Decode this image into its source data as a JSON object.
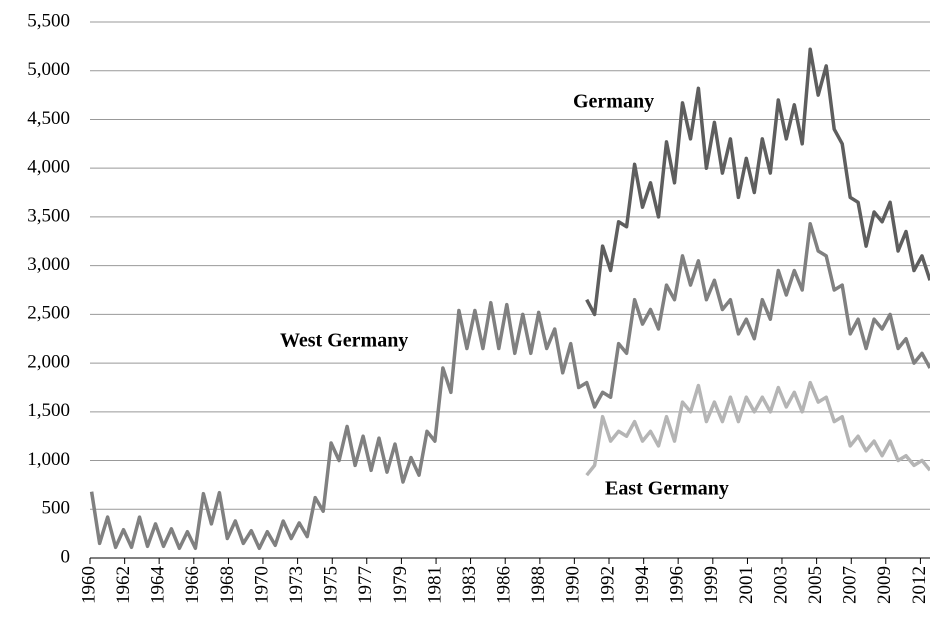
{
  "chart_data": {
    "type": "line",
    "x": [
      1960.1,
      1960.6,
      1961.1,
      1961.6,
      1962.1,
      1962.6,
      1963.1,
      1963.6,
      1964.1,
      1964.6,
      1965.1,
      1965.6,
      1966.1,
      1966.6,
      1967.1,
      1967.6,
      1968.1,
      1968.6,
      1969.1,
      1969.6,
      1970.1,
      1970.6,
      1971.1,
      1971.6,
      1972.1,
      1972.6,
      1973.1,
      1973.6,
      1974.1,
      1974.6,
      1975.1,
      1975.6,
      1976.1,
      1976.6,
      1977.1,
      1977.6,
      1978.1,
      1978.6,
      1979.1,
      1979.6,
      1980.1,
      1980.6,
      1981.1,
      1981.6,
      1982.1,
      1982.6,
      1983.1,
      1983.6,
      1984.1,
      1984.6,
      1985.1,
      1985.6,
      1986.1,
      1986.6,
      1987.1,
      1987.6,
      1988.1,
      1988.6,
      1989.1,
      1989.6,
      1990.1,
      1990.6,
      1991.1,
      1991.6,
      1992.1,
      1992.6,
      1993.1,
      1993.6,
      1994.1,
      1994.6,
      1995.1,
      1995.6,
      1996.1,
      1996.6,
      1997.1,
      1997.6,
      1998.1,
      1998.6,
      1999.1,
      1999.6,
      2000.1,
      2000.6,
      2001.1,
      2001.6,
      2002.1,
      2002.6,
      2003.1,
      2003.6,
      2004.1,
      2004.6,
      2005.1,
      2005.6,
      2006.1,
      2006.6,
      2007.1,
      2007.6,
      2008.1,
      2008.6,
      2009.1,
      2009.6,
      2010.1,
      2010.6,
      2011.1,
      2011.6,
      2012.1,
      2012.6
    ],
    "series": [
      {
        "name": "Germany",
        "color": "#5e5e5e",
        "values": [
          null,
          null,
          null,
          null,
          null,
          null,
          null,
          null,
          null,
          null,
          null,
          null,
          null,
          null,
          null,
          null,
          null,
          null,
          null,
          null,
          null,
          null,
          null,
          null,
          null,
          null,
          null,
          null,
          null,
          null,
          null,
          null,
          null,
          null,
          null,
          null,
          null,
          null,
          null,
          null,
          null,
          null,
          null,
          null,
          null,
          null,
          null,
          null,
          null,
          null,
          null,
          null,
          null,
          null,
          null,
          null,
          null,
          null,
          null,
          null,
          null,
          null,
          2650,
          2500,
          3200,
          2950,
          3450,
          3400,
          4040,
          3600,
          3850,
          3500,
          4270,
          3850,
          4670,
          4300,
          4820,
          4000,
          4470,
          3950,
          4300,
          3700,
          4100,
          3750,
          4300,
          3950,
          4700,
          4300,
          4650,
          4250,
          5220,
          4750,
          5050,
          4400,
          4250,
          3700,
          3650,
          3200,
          3550,
          3450,
          3650,
          3150,
          3350,
          2950,
          3100,
          2850
        ]
      },
      {
        "name": "West Germany",
        "color": "#808080",
        "values": [
          680,
          150,
          420,
          110,
          290,
          110,
          420,
          120,
          350,
          120,
          300,
          100,
          270,
          100,
          660,
          350,
          670,
          200,
          380,
          150,
          280,
          100,
          270,
          130,
          380,
          200,
          360,
          220,
          620,
          480,
          1180,
          1000,
          1350,
          950,
          1250,
          900,
          1230,
          880,
          1170,
          780,
          1030,
          850,
          1300,
          1200,
          1950,
          1700,
          2540,
          2150,
          2540,
          2150,
          2620,
          2150,
          2600,
          2100,
          2500,
          2100,
          2520,
          2150,
          2350,
          1900,
          2200,
          1750,
          1800,
          1550,
          1700,
          1650,
          2200,
          2100,
          2650,
          2400,
          2550,
          2350,
          2800,
          2650,
          3100,
          2800,
          3050,
          2650,
          2850,
          2550,
          2650,
          2300,
          2450,
          2250,
          2650,
          2450,
          2950,
          2700,
          2950,
          2750,
          3430,
          3150,
          3100,
          2750,
          2800,
          2300,
          2450,
          2150,
          2450,
          2350,
          2500,
          2150,
          2250,
          2000,
          2100,
          1950
        ]
      },
      {
        "name": "East Germany",
        "color": "#b5b5b5",
        "values": [
          null,
          null,
          null,
          null,
          null,
          null,
          null,
          null,
          null,
          null,
          null,
          null,
          null,
          null,
          null,
          null,
          null,
          null,
          null,
          null,
          null,
          null,
          null,
          null,
          null,
          null,
          null,
          null,
          null,
          null,
          null,
          null,
          null,
          null,
          null,
          null,
          null,
          null,
          null,
          null,
          null,
          null,
          null,
          null,
          null,
          null,
          null,
          null,
          null,
          null,
          null,
          null,
          null,
          null,
          null,
          null,
          null,
          null,
          null,
          null,
          null,
          null,
          850,
          950,
          1450,
          1200,
          1300,
          1250,
          1400,
          1200,
          1300,
          1150,
          1450,
          1200,
          1600,
          1500,
          1770,
          1400,
          1600,
          1400,
          1650,
          1400,
          1650,
          1500,
          1650,
          1500,
          1750,
          1550,
          1700,
          1500,
          1800,
          1600,
          1650,
          1400,
          1450,
          1150,
          1250,
          1100,
          1200,
          1050,
          1200,
          1000,
          1050,
          950,
          1000,
          900
        ]
      }
    ],
    "xlim": [
      1960,
      2012.6
    ],
    "xticks": [
      1960,
      {
        "value": 1962.17,
        "label": "1962"
      },
      {
        "value": 1964.33,
        "label": "1964"
      },
      {
        "value": 1966.5,
        "label": "1966"
      },
      {
        "value": 1968.67,
        "label": "1968"
      },
      {
        "value": 1970.83,
        "label": "1970"
      },
      1973,
      {
        "value": 1975.17,
        "label": "1975"
      },
      {
        "value": 1977.33,
        "label": "1977"
      },
      {
        "value": 1979.5,
        "label": "1979"
      },
      {
        "value": 1981.67,
        "label": "1981"
      },
      {
        "value": 1983.83,
        "label": "1983"
      },
      1986,
      {
        "value": 1988.17,
        "label": "1988"
      },
      {
        "value": 1990.33,
        "label": "1990"
      },
      {
        "value": 1992.5,
        "label": "1992"
      },
      {
        "value": 1994.67,
        "label": "1994"
      },
      {
        "value": 1996.83,
        "label": "1996"
      },
      1999,
      {
        "value": 2001.17,
        "label": "2001"
      },
      {
        "value": 2003.33,
        "label": "2003"
      },
      {
        "value": 2005.5,
        "label": "2005"
      },
      {
        "value": 2007.67,
        "label": "2007"
      },
      {
        "value": 2009.83,
        "label": "2009"
      },
      2012
    ],
    "ylim": [
      0,
      5500
    ],
    "yticks": [
      0,
      500,
      {
        "value": 1000,
        "label": "1,000"
      },
      {
        "value": 1500,
        "label": "1,500"
      },
      {
        "value": 2000,
        "label": "2,000"
      },
      {
        "value": 2500,
        "label": "2,500"
      },
      {
        "value": 3000,
        "label": "3,000"
      },
      {
        "value": 3500,
        "label": "3,500"
      },
      {
        "value": 4000,
        "label": "4,000"
      },
      {
        "value": 4500,
        "label": "4,500"
      },
      {
        "value": 5000,
        "label": "5,000"
      },
      {
        "value": 5500,
        "label": "5,500"
      }
    ],
    "grid": true
  }
}
